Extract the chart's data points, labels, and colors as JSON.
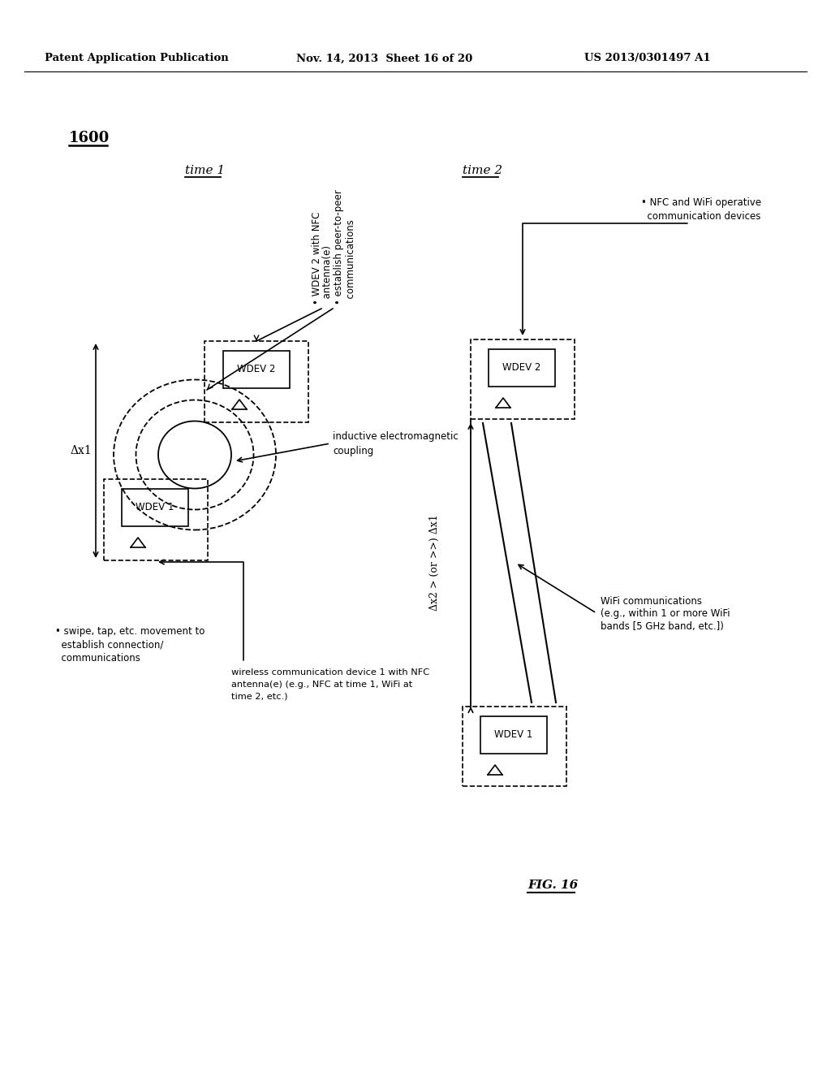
{
  "header_left": "Patent Application Publication",
  "header_mid": "Nov. 14, 2013  Sheet 16 of 20",
  "header_right": "US 2013/0301497 A1",
  "bg_color": "#ffffff"
}
